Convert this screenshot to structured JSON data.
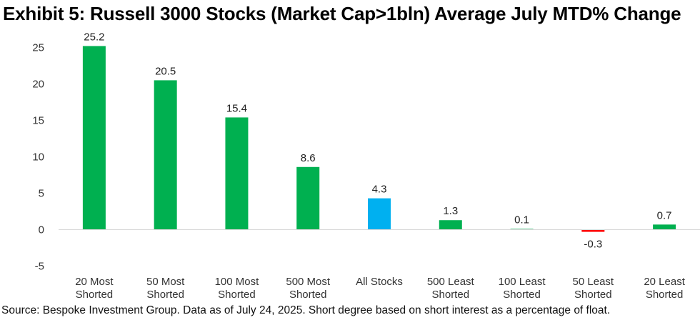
{
  "title": "Exhibit 5: Russell 3000 Stocks (Market Cap>1bln) Average July MTD% Change",
  "source": "Source: Bespoke Investment Group. Data as of July 24, 2025. Short degree based on short interest as a percentage of float.",
  "chart_data": {
    "type": "bar",
    "categories": [
      [
        "20 Most",
        "Shorted"
      ],
      [
        "50 Most",
        "Shorted"
      ],
      [
        "100 Most",
        "Shorted"
      ],
      [
        "500 Most",
        "Shorted"
      ],
      [
        "All Stocks"
      ],
      [
        "500 Least",
        "Shorted"
      ],
      [
        "100 Least",
        "Shorted"
      ],
      [
        "50 Least",
        "Shorted"
      ],
      [
        "20 Least",
        "Shorted"
      ]
    ],
    "values": [
      25.2,
      20.5,
      15.4,
      8.6,
      4.3,
      1.3,
      0.1,
      -0.3,
      0.7
    ],
    "data_labels": [
      "25.2",
      "20.5",
      "15.4",
      "8.6",
      "4.3",
      "1.3",
      "0.1",
      "-0.3",
      "0.7"
    ],
    "bar_colors": [
      "#00B050",
      "#00B050",
      "#00B050",
      "#00B050",
      "#00B0F0",
      "#00B050",
      "#00B050",
      "#FF0000",
      "#00B050"
    ],
    "ylim": [
      -5,
      25
    ],
    "yticks": [
      -5,
      0,
      5,
      10,
      15,
      20,
      25
    ],
    "grid": false,
    "xlabel": "",
    "ylabel": "",
    "axis_color": "#D9D9D9"
  }
}
